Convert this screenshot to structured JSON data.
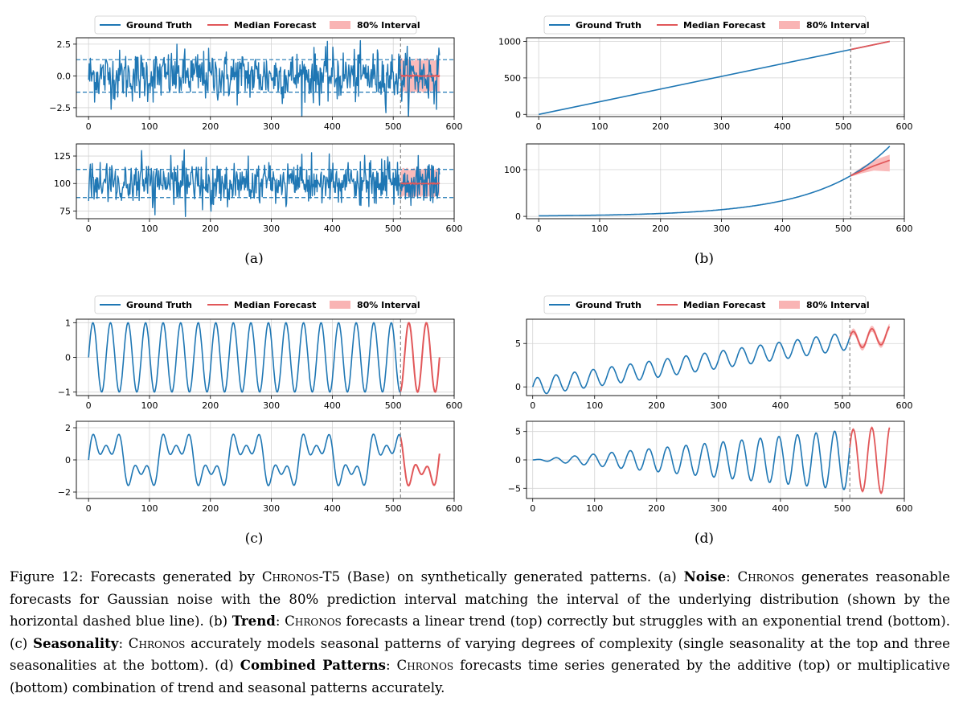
{
  "colors": {
    "ground_truth": "#1f77b4",
    "median_forecast": "#e15759",
    "interval": "#f9b4b4",
    "grid": "#d3d3d3",
    "threshold": "#1f77b4",
    "split": "#7f7f7f"
  },
  "legend": {
    "ground_truth": "Ground Truth",
    "median_forecast": "Median Forecast",
    "interval": "80% Interval"
  },
  "panel_labels": [
    "(a)",
    "(b)",
    "(c)",
    "(d)"
  ],
  "caption": {
    "fig_label": "Figure 12:",
    "intro": " Forecasts generated by ",
    "model": "Chronos",
    "model_suffix": "-T5 (Base) on synthetically generated patterns. (a) ",
    "noise_title": "Noise",
    "noise_text_a": ": ",
    "chronos1": "Chronos",
    "noise_text_b": " generates reasonable forecasts for Gaussian noise with the 80% prediction interval matching the interval of the underlying distribution (shown by the horizontal dashed blue line). (b) ",
    "trend_title": "Trend",
    "trend_text_a": ": ",
    "chronos2": "Chronos",
    "trend_text_b": " forecasts a linear trend (top) correctly but struggles with an exponential trend (bottom). (c) ",
    "season_title": "Seasonality",
    "season_text_a": ": ",
    "chronos3": "Chronos",
    "season_text_b": " accurately models seasonal patterns of varying degrees of complexity (single seasonality at the top and three seasonalities at the bottom). (d) ",
    "combined_title": "Combined Patterns",
    "combined_text_a": ": ",
    "chronos4": "Chronos",
    "combined_text_b": " forecasts time series generated by the additive (top) or multiplicative (bottom) combination of trend and seasonal patterns accurately."
  },
  "chart_data": [
    {
      "type": "line",
      "panel": "a",
      "position": "top",
      "pattern": "gaussian-noise",
      "xlim": [
        -20,
        600
      ],
      "ylim": [
        -3.2,
        3.0
      ],
      "xticks": [
        "0",
        "100",
        "200",
        "300",
        "400",
        "500",
        "600"
      ],
      "yticks": [
        {
          "v": 2.5,
          "label": "2.5"
        },
        {
          "v": 0.0,
          "label": "0.0"
        },
        {
          "v": -2.5,
          "label": "−2.5"
        }
      ],
      "context_length": 512,
      "horizon": 64,
      "mean": 0,
      "std": 1,
      "thresholds": [
        1.28,
        -1.28
      ],
      "median_forecast": 0.0,
      "interval": [
        -1.25,
        1.3
      ]
    },
    {
      "type": "line",
      "panel": "a",
      "position": "bottom",
      "pattern": "gaussian-noise",
      "xlim": [
        -20,
        600
      ],
      "ylim": [
        68,
        136
      ],
      "xticks": [
        "0",
        "100",
        "200",
        "300",
        "400",
        "500",
        "600"
      ],
      "yticks": [
        {
          "v": 125,
          "label": "125"
        },
        {
          "v": 100,
          "label": "100"
        },
        {
          "v": 75,
          "label": "75"
        }
      ],
      "context_length": 512,
      "horizon": 64,
      "mean": 100,
      "std": 10,
      "thresholds": [
        112.8,
        87.2
      ],
      "median_forecast": 100,
      "interval": [
        88,
        113
      ]
    },
    {
      "type": "line",
      "panel": "b",
      "position": "top",
      "pattern": "linear-trend",
      "xlim": [
        -20,
        600
      ],
      "ylim": [
        -30,
        1050
      ],
      "xticks": [
        "0",
        "100",
        "200",
        "300",
        "400",
        "500",
        "600"
      ],
      "yticks": [
        {
          "v": 1000,
          "label": "1000"
        },
        {
          "v": 500,
          "label": "500"
        },
        {
          "v": 0,
          "label": "0"
        }
      ],
      "context_length": 512,
      "horizon": 64,
      "ground_truth": {
        "x": [
          0,
          576
        ],
        "y": [
          0,
          1000
        ]
      },
      "median_forecast": {
        "x": [
          512,
          576
        ],
        "y": [
          889,
          1000
        ]
      }
    },
    {
      "type": "line",
      "panel": "b",
      "position": "bottom",
      "pattern": "exponential-trend",
      "xlim": [
        -20,
        600
      ],
      "ylim": [
        -5,
        155
      ],
      "xticks": [
        "0",
        "100",
        "200",
        "300",
        "400",
        "500",
        "600"
      ],
      "yticks": [
        {
          "v": 100,
          "label": "100"
        },
        {
          "v": 0,
          "label": "0"
        }
      ],
      "context_length": 512,
      "horizon": 64,
      "ground_truth": {
        "start": 1,
        "value_at_512": 87,
        "value_at_576": 150
      },
      "median_forecast": {
        "x": [
          512,
          530,
          550,
          576
        ],
        "y": [
          87,
          97,
          108,
          120
        ]
      },
      "interval_upper": {
        "x": [
          512,
          530,
          550,
          576
        ],
        "y": [
          89,
          105,
          120,
          132
        ]
      },
      "interval_lower": {
        "x": [
          512,
          530,
          550,
          576
        ],
        "y": [
          85,
          92,
          98,
          96
        ]
      }
    },
    {
      "type": "line",
      "panel": "c",
      "position": "top",
      "pattern": "single-seasonality",
      "xlim": [
        -20,
        600
      ],
      "ylim": [
        -1.1,
        1.1
      ],
      "xticks": [
        "0",
        "100",
        "200",
        "300",
        "400",
        "500",
        "600"
      ],
      "yticks": [
        {
          "v": 1,
          "label": "1"
        },
        {
          "v": 0,
          "label": "0"
        },
        {
          "v": -1,
          "label": "−1"
        }
      ],
      "context_length": 512,
      "horizon": 64,
      "components": [
        {
          "amplitude": 1,
          "period": 28.8
        }
      ]
    },
    {
      "type": "line",
      "panel": "c",
      "position": "bottom",
      "pattern": "three-seasonalities",
      "xlim": [
        -20,
        600
      ],
      "ylim": [
        -2.4,
        2.4
      ],
      "xticks": [
        "0",
        "100",
        "200",
        "300",
        "400",
        "500",
        "600"
      ],
      "yticks": [
        {
          "v": 2,
          "label": "2"
        },
        {
          "v": 0,
          "label": "0"
        },
        {
          "v": -2,
          "label": "−2"
        }
      ],
      "context_length": 512,
      "horizon": 64,
      "components": [
        {
          "amplitude": 1,
          "period": 115
        },
        {
          "amplitude": 0.7,
          "period": 38.3
        },
        {
          "amplitude": 0.6,
          "period": 23
        }
      ]
    },
    {
      "type": "line",
      "panel": "d",
      "position": "top",
      "pattern": "additive-trend-seasonality",
      "xlim": [
        -10,
        600
      ],
      "ylim": [
        -1.0,
        7.8
      ],
      "xticks": [
        "0",
        "100",
        "200",
        "300",
        "400",
        "500",
        "600"
      ],
      "yticks": [
        {
          "v": 5,
          "label": "5"
        },
        {
          "v": 0,
          "label": "0"
        }
      ],
      "context_length": 512,
      "horizon": 64,
      "trend_slope": 0.0104,
      "seasonal_amplitude": 1,
      "period": 30
    },
    {
      "type": "line",
      "panel": "d",
      "position": "bottom",
      "pattern": "multiplicative-trend-seasonality",
      "xlim": [
        -10,
        600
      ],
      "ylim": [
        -6.8,
        6.8
      ],
      "xticks": [
        "0",
        "100",
        "200",
        "300",
        "400",
        "500",
        "600"
      ],
      "yticks": [
        {
          "v": 5,
          "label": "5"
        },
        {
          "v": 0,
          "label": "0"
        },
        {
          "v": -5,
          "label": "−5"
        }
      ],
      "context_length": 512,
      "horizon": 64,
      "trend_slope": 0.0104,
      "period": 30
    }
  ]
}
